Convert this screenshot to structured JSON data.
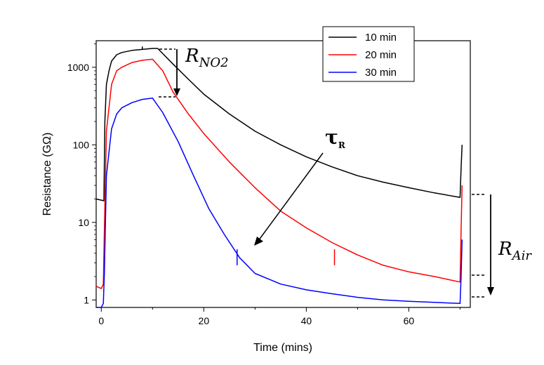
{
  "chart_data": {
    "type": "line",
    "title": "",
    "xlabel": "Time (mins)",
    "ylabel": "Resistance (GΩ)",
    "xlim": [
      -1,
      72
    ],
    "ylim": [
      0.8,
      2200
    ],
    "yscale": "log",
    "grid": false,
    "legend_position": "top-right",
    "x_ticks": [
      0,
      20,
      40,
      60
    ],
    "x_tick_labels": [
      "0",
      "20",
      "40",
      "60"
    ],
    "y_ticks": [
      1,
      10,
      100,
      1000
    ],
    "y_tick_labels": [
      "1",
      "10",
      "100",
      "1000"
    ],
    "series": [
      {
        "name": "10 min",
        "color": "#000000",
        "x": [
          -1,
          0.5,
          0.7,
          1,
          1.5,
          2,
          3,
          4,
          6,
          8,
          10,
          11,
          12,
          14,
          17,
          20,
          25,
          30,
          35,
          40,
          45,
          50,
          55,
          60,
          65,
          70,
          70.2,
          70.4
        ],
        "y": [
          20,
          19,
          200,
          600,
          900,
          1200,
          1450,
          1550,
          1650,
          1700,
          1750,
          1750,
          1500,
          1100,
          700,
          450,
          250,
          150,
          100,
          70,
          52,
          40,
          33,
          28,
          24,
          21,
          50,
          100
        ]
      },
      {
        "name": "20 min",
        "color": "#ff0000",
        "x": [
          -1,
          0,
          0.4,
          0.6,
          1,
          2,
          3,
          4,
          6,
          8,
          10,
          12,
          14,
          17,
          20,
          25,
          30,
          35,
          40,
          45,
          50,
          55,
          60,
          65,
          70,
          70.2,
          70.4
        ],
        "y": [
          1.5,
          1.4,
          1.6,
          8,
          150,
          600,
          900,
          1000,
          1150,
          1230,
          1270,
          900,
          480,
          250,
          140,
          60,
          28,
          14,
          8.5,
          5.5,
          3.8,
          2.8,
          2.3,
          2.0,
          1.7,
          8,
          30
        ]
      },
      {
        "name": "30 min",
        "color": "#0000ff",
        "x": [
          -1,
          0,
          0.4,
          0.6,
          1,
          2,
          3,
          4,
          6,
          8,
          10,
          12,
          15,
          18,
          21,
          24,
          27,
          30,
          35,
          40,
          45,
          50,
          55,
          60,
          65,
          70,
          70.2,
          70.4
        ],
        "y": [
          0.8,
          0.8,
          0.9,
          2.2,
          40,
          160,
          250,
          300,
          350,
          385,
          400,
          260,
          110,
          40,
          15,
          7,
          3.5,
          2.2,
          1.6,
          1.35,
          1.2,
          1.08,
          1.0,
          0.96,
          0.93,
          0.9,
          2,
          6
        ]
      }
    ],
    "markers": [
      {
        "series": "30 min",
        "x": 26.5,
        "y_from": 2.8,
        "y_to": 4.5
      },
      {
        "series": "20 min",
        "x": 45.5,
        "y_from": 2.8,
        "y_to": 4.5
      },
      {
        "series": "10 min",
        "x": 8,
        "y_from": 1700,
        "y_to": 1850
      }
    ],
    "annotations": [
      {
        "text": "R",
        "subscript": "NO2"
      },
      {
        "text": "τ",
        "subscript": "R"
      },
      {
        "text": "R",
        "subscript": "Air"
      }
    ]
  }
}
